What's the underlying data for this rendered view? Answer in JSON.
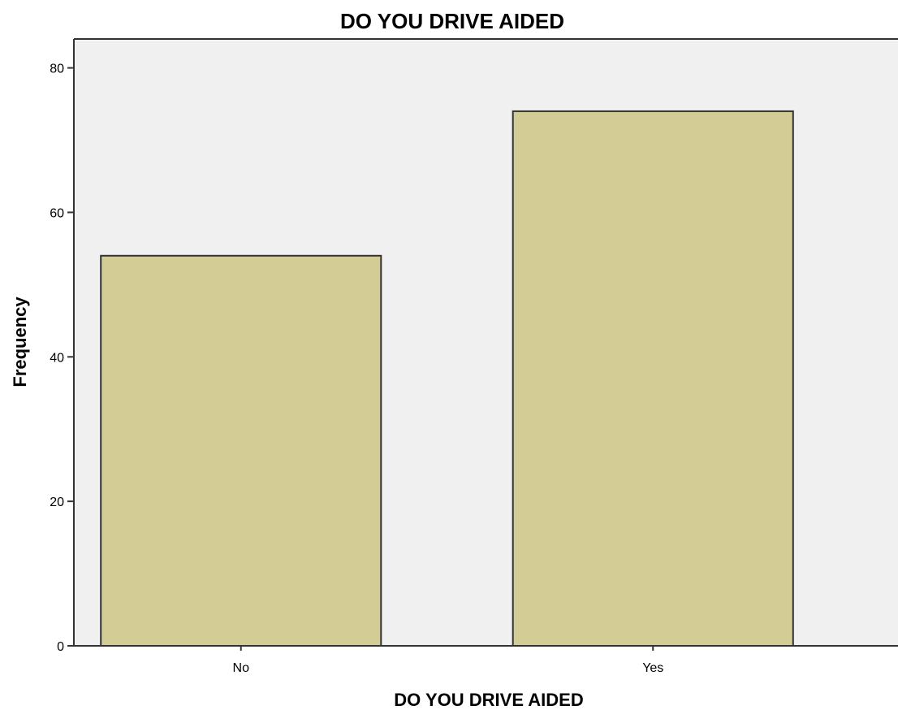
{
  "chart_data": {
    "type": "bar",
    "title": "DO YOU DRIVE AIDED",
    "xlabel": "DO YOU DRIVE AIDED",
    "ylabel": "Frequency",
    "categories": [
      "No",
      "Yes"
    ],
    "values": [
      54,
      74
    ],
    "ylim": [
      0,
      84
    ],
    "yticks": [
      0,
      20,
      40,
      60,
      80
    ],
    "grid": false,
    "legend": "none",
    "colors": {
      "plot_background": "#f0f0f0",
      "bar_fill": "#d3cd95",
      "bar_stroke": "#333333",
      "axis": "#333333"
    }
  }
}
